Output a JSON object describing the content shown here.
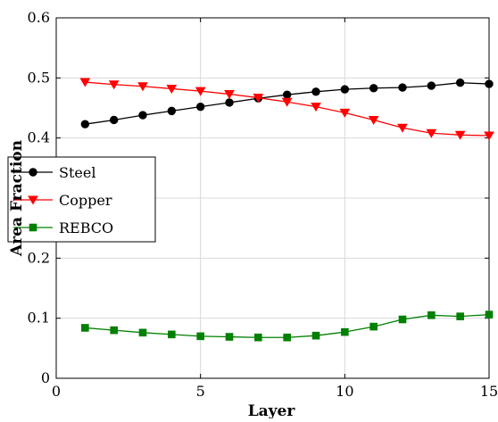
{
  "chart_data": {
    "type": "line",
    "title": "",
    "xlabel": "Layer",
    "ylabel": "Area Fraction",
    "xlim": [
      0,
      15
    ],
    "ylim": [
      0,
      0.6
    ],
    "xticks": [
      0,
      5,
      10,
      15
    ],
    "xtick_labels": [
      "0",
      "5",
      "10",
      "15"
    ],
    "yticks": [
      0,
      0.1,
      0.2,
      0.3,
      0.4,
      0.5,
      0.6
    ],
    "ytick_labels": [
      "0",
      "0.1",
      "0.2",
      "0.3",
      "0.4",
      "0.5",
      "0.6"
    ],
    "grid": true,
    "legend_position": "middle-left",
    "x": [
      1,
      2,
      3,
      4,
      5,
      6,
      7,
      8,
      9,
      10,
      11,
      12,
      13,
      14,
      15
    ],
    "series": [
      {
        "name": "Steel",
        "color": "#000000",
        "marker": "circle",
        "values": [
          0.423,
          0.43,
          0.438,
          0.445,
          0.452,
          0.459,
          0.466,
          0.472,
          0.477,
          0.481,
          0.483,
          0.484,
          0.487,
          0.492,
          0.49
        ]
      },
      {
        "name": "Copper",
        "color": "#ff0000",
        "marker": "triangle-down",
        "values": [
          0.493,
          0.489,
          0.486,
          0.482,
          0.478,
          0.473,
          0.467,
          0.46,
          0.452,
          0.442,
          0.43,
          0.417,
          0.408,
          0.405,
          0.404
        ]
      },
      {
        "name": "REBCO",
        "color": "#008000",
        "marker": "square",
        "values": [
          0.084,
          0.08,
          0.076,
          0.073,
          0.07,
          0.069,
          0.068,
          0.068,
          0.071,
          0.077,
          0.086,
          0.098,
          0.105,
          0.103,
          0.106
        ]
      }
    ]
  }
}
